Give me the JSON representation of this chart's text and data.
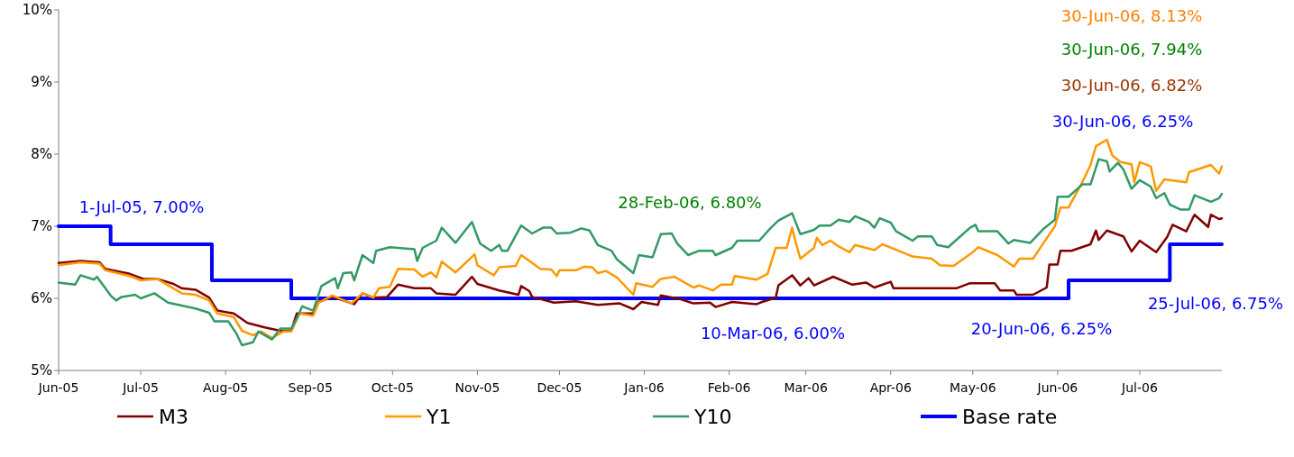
{
  "chart_data": {
    "type": "line",
    "xlim": [
      "2005-06-01",
      "2006-07-31"
    ],
    "ylim": [
      5,
      10
    ],
    "xticks": [
      {
        "value": "2005-06-01",
        "label": "Jun-05"
      },
      {
        "value": "2005-07-01",
        "label": "Jul-05"
      },
      {
        "value": "2005-08-01",
        "label": "Aug-05"
      },
      {
        "value": "2005-09-01",
        "label": "Sep-05"
      },
      {
        "value": "2005-10-01",
        "label": "Oct-05"
      },
      {
        "value": "2005-11-01",
        "label": "Nov-05"
      },
      {
        "value": "2005-12-01",
        "label": "Dec-05"
      },
      {
        "value": "2006-01-01",
        "label": "Jan-06"
      },
      {
        "value": "2006-02-01",
        "label": "Feb-06"
      },
      {
        "value": "2006-03-01",
        "label": "Mar-06"
      },
      {
        "value": "2006-04-01",
        "label": "Apr-06"
      },
      {
        "value": "2006-05-01",
        "label": "May-06"
      },
      {
        "value": "2006-06-01",
        "label": "Jun-06"
      },
      {
        "value": "2006-07-01",
        "label": "Jul-06"
      }
    ],
    "yticks": [
      {
        "value": 5,
        "label": "5%"
      },
      {
        "value": 6,
        "label": "6%"
      },
      {
        "value": 7,
        "label": "7%"
      },
      {
        "value": 8,
        "label": "8%"
      },
      {
        "value": 9,
        "label": "9%"
      },
      {
        "value": 10,
        "label": "10%"
      }
    ],
    "grid": false,
    "legend": "bottom",
    "line_style": "solid",
    "series": [
      {
        "name": "M3",
        "color": "#800000",
        "x": [
          "2005-06-01",
          "2005-06-09",
          "2005-06-16",
          "2005-06-18",
          "2005-06-27",
          "2005-07-02",
          "2005-07-07",
          "2005-07-13",
          "2005-07-16",
          "2005-07-21",
          "2005-07-26",
          "2005-07-29",
          "2005-08-04",
          "2005-08-09",
          "2005-08-15",
          "2005-08-21",
          "2005-08-25",
          "2005-08-27",
          "2005-09-02",
          "2005-09-04",
          "2005-09-09",
          "2005-09-17",
          "2005-09-20",
          "2005-09-24",
          "2005-09-29",
          "2005-10-03",
          "2005-10-09",
          "2005-10-15",
          "2005-10-17",
          "2005-10-24",
          "2005-10-30",
          "2005-11-01",
          "2005-11-09",
          "2005-11-16",
          "2005-11-17",
          "2005-11-20",
          "2005-11-21",
          "2005-11-29",
          "2005-12-07",
          "2005-12-15",
          "2005-12-23",
          "2005-12-28",
          "2005-12-31",
          "2006-01-06",
          "2006-01-07",
          "2006-01-14",
          "2006-01-19",
          "2006-01-25",
          "2006-01-27",
          "2006-02-02",
          "2006-02-11",
          "2006-02-13",
          "2006-02-18",
          "2006-02-19",
          "2006-02-24",
          "2006-02-27",
          "2006-03-02",
          "2006-03-04",
          "2006-03-11",
          "2006-03-18",
          "2006-03-23",
          "2006-03-26",
          "2006-04-01",
          "2006-04-02",
          "2006-04-25",
          "2006-04-30",
          "2006-05-09",
          "2006-05-11",
          "2006-05-16",
          "2006-05-17",
          "2006-05-23",
          "2006-05-28",
          "2006-05-29",
          "2006-06-01",
          "2006-06-02",
          "2006-06-06",
          "2006-06-13",
          "2006-06-15",
          "2006-06-16",
          "2006-06-19",
          "2006-06-25",
          "2006-06-28",
          "2006-07-01",
          "2006-07-07",
          "2006-07-11",
          "2006-07-13",
          "2006-07-18",
          "2006-07-21",
          "2006-07-26",
          "2006-07-27",
          "2006-07-30",
          "2006-07-31"
        ],
        "values": [
          6.49,
          6.52,
          6.5,
          6.41,
          6.34,
          6.27,
          6.27,
          6.2,
          6.14,
          6.12,
          6.01,
          5.83,
          5.79,
          5.66,
          5.6,
          5.55,
          5.55,
          5.79,
          5.79,
          5.95,
          6.02,
          5.92,
          6.07,
          6.01,
          6.02,
          6.19,
          6.14,
          6.14,
          6.07,
          6.05,
          6.3,
          6.2,
          6.11,
          6.05,
          6.17,
          6.1,
          6.02,
          5.94,
          5.96,
          5.91,
          5.93,
          5.85,
          5.95,
          5.91,
          6.04,
          5.99,
          5.93,
          5.94,
          5.88,
          5.95,
          5.92,
          5.95,
          6.01,
          6.18,
          6.32,
          6.18,
          6.28,
          6.18,
          6.3,
          6.19,
          6.22,
          6.15,
          6.23,
          6.14,
          6.14,
          6.21,
          6.21,
          6.11,
          6.11,
          6.05,
          6.05,
          6.15,
          6.47,
          6.47,
          6.66,
          6.66,
          6.75,
          6.94,
          6.81,
          6.94,
          6.86,
          6.65,
          6.8,
          6.64,
          6.85,
          7.02,
          6.93,
          7.16,
          6.99,
          7.16,
          7.1,
          7.11
        ]
      },
      {
        "name": "Y1",
        "color": "#ff9900",
        "x": [
          "2005-06-01",
          "2005-06-09",
          "2005-06-16",
          "2005-06-18",
          "2005-06-27",
          "2005-07-01",
          "2005-07-07",
          "2005-07-16",
          "2005-07-21",
          "2005-07-26",
          "2005-07-29",
          "2005-08-04",
          "2005-08-07",
          "2005-08-11",
          "2005-08-14",
          "2005-08-18",
          "2005-08-22",
          "2005-08-25",
          "2005-08-28",
          "2005-09-02",
          "2005-09-04",
          "2005-09-09",
          "2005-09-16",
          "2005-09-20",
          "2005-09-24",
          "2005-09-26",
          "2005-09-30",
          "2005-10-03",
          "2005-10-09",
          "2005-10-12",
          "2005-10-15",
          "2005-10-17",
          "2005-10-19",
          "2005-10-24",
          "2005-10-31",
          "2005-11-01",
          "2005-11-07",
          "2005-11-09",
          "2005-11-15",
          "2005-11-17",
          "2005-11-24",
          "2005-11-28",
          "2005-11-30",
          "2005-12-01",
          "2005-12-07",
          "2005-12-10",
          "2005-12-13",
          "2005-12-15",
          "2005-12-18",
          "2005-12-22",
          "2005-12-28",
          "2005-12-29",
          "2006-01-04",
          "2006-01-07",
          "2006-01-12",
          "2006-01-19",
          "2006-01-21",
          "2006-01-26",
          "2006-01-29",
          "2006-02-02",
          "2006-02-03",
          "2006-02-11",
          "2006-02-15",
          "2006-02-18",
          "2006-02-22",
          "2006-02-24",
          "2006-02-25",
          "2006-02-27",
          "2006-03-04",
          "2006-03-05",
          "2006-03-07",
          "2006-03-10",
          "2006-03-13",
          "2006-03-17",
          "2006-03-19",
          "2006-03-23",
          "2006-03-26",
          "2006-03-29",
          "2006-04-02",
          "2006-04-09",
          "2006-04-16",
          "2006-04-19",
          "2006-04-24",
          "2006-05-01",
          "2006-05-03",
          "2006-05-10",
          "2006-05-16",
          "2006-05-18",
          "2006-05-23",
          "2006-05-26",
          "2006-05-31",
          "2006-06-02",
          "2006-06-05",
          "2006-06-10",
          "2006-06-13",
          "2006-06-15",
          "2006-06-19",
          "2006-06-21",
          "2006-06-24",
          "2006-06-28",
          "2006-06-29",
          "2006-07-01",
          "2006-07-05",
          "2006-07-07",
          "2006-07-10",
          "2006-07-18",
          "2006-07-19",
          "2006-07-27",
          "2006-07-30",
          "2006-07-31"
        ],
        "values": [
          6.46,
          6.5,
          6.48,
          6.39,
          6.31,
          6.25,
          6.27,
          6.07,
          6.05,
          5.97,
          5.79,
          5.74,
          5.55,
          5.49,
          5.54,
          5.45,
          5.54,
          5.54,
          5.79,
          5.76,
          5.94,
          6.04,
          5.93,
          6.07,
          6.01,
          6.14,
          6.16,
          6.41,
          6.4,
          6.3,
          6.36,
          6.29,
          6.51,
          6.36,
          6.61,
          6.46,
          6.32,
          6.43,
          6.45,
          6.6,
          6.41,
          6.4,
          6.31,
          6.39,
          6.39,
          6.44,
          6.43,
          6.35,
          6.38,
          6.29,
          6.05,
          6.21,
          6.16,
          6.27,
          6.3,
          6.15,
          6.18,
          6.11,
          6.19,
          6.19,
          6.31,
          6.26,
          6.34,
          6.7,
          6.7,
          6.98,
          6.82,
          6.55,
          6.7,
          6.84,
          6.74,
          6.8,
          6.72,
          6.64,
          6.74,
          6.7,
          6.67,
          6.75,
          6.69,
          6.58,
          6.55,
          6.46,
          6.45,
          6.64,
          6.71,
          6.6,
          6.44,
          6.55,
          6.55,
          6.72,
          7.0,
          7.26,
          7.26,
          7.61,
          7.85,
          8.11,
          8.2,
          7.98,
          7.89,
          7.86,
          7.61,
          7.89,
          7.83,
          7.49,
          7.65,
          7.61,
          7.75,
          7.85,
          7.73,
          7.83
        ]
      },
      {
        "name": "Y10",
        "color": "#339966",
        "x": [
          "2005-06-01",
          "2005-06-07",
          "2005-06-09",
          "2005-06-14",
          "2005-06-15",
          "2005-06-20",
          "2005-06-22",
          "2005-06-24",
          "2005-06-29",
          "2005-07-01",
          "2005-07-06",
          "2005-07-11",
          "2005-07-21",
          "2005-07-26",
          "2005-07-28",
          "2005-08-02",
          "2005-08-05",
          "2005-08-07",
          "2005-08-11",
          "2005-08-13",
          "2005-08-18",
          "2005-08-21",
          "2005-08-25",
          "2005-08-27",
          "2005-08-29",
          "2005-09-02",
          "2005-09-05",
          "2005-09-10",
          "2005-09-11",
          "2005-09-13",
          "2005-09-16",
          "2005-09-17",
          "2005-09-20",
          "2005-09-24",
          "2005-09-25",
          "2005-09-30",
          "2005-10-09",
          "2005-10-10",
          "2005-10-12",
          "2005-10-17",
          "2005-10-19",
          "2005-10-24",
          "2005-10-30",
          "2005-11-02",
          "2005-11-06",
          "2005-11-09",
          "2005-11-10",
          "2005-11-12",
          "2005-11-17",
          "2005-11-21",
          "2005-11-25",
          "2005-11-28",
          "2005-11-30",
          "2005-12-05",
          "2005-12-09",
          "2005-12-12",
          "2005-12-15",
          "2005-12-20",
          "2005-12-22",
          "2005-12-28",
          "2005-12-30",
          "2006-01-04",
          "2006-01-07",
          "2006-01-11",
          "2006-01-13",
          "2006-01-17",
          "2006-01-21",
          "2006-01-26",
          "2006-01-27",
          "2006-02-02",
          "2006-02-04",
          "2006-02-12",
          "2006-02-16",
          "2006-02-19",
          "2006-02-24",
          "2006-02-27",
          "2006-03-04",
          "2006-03-06",
          "2006-03-10",
          "2006-03-13",
          "2006-03-17",
          "2006-03-19",
          "2006-03-24",
          "2006-03-26",
          "2006-03-28",
          "2006-04-01",
          "2006-04-03",
          "2006-04-09",
          "2006-04-11",
          "2006-04-16",
          "2006-04-18",
          "2006-04-22",
          "2006-04-30",
          "2006-05-02",
          "2006-05-03",
          "2006-05-10",
          "2006-05-14",
          "2006-05-16",
          "2006-05-22",
          "2006-05-27",
          "2006-05-31",
          "2006-06-01",
          "2006-06-05",
          "2006-06-10",
          "2006-06-13",
          "2006-06-16",
          "2006-06-19",
          "2006-06-20",
          "2006-06-23",
          "2006-06-25",
          "2006-06-28",
          "2006-07-01",
          "2006-07-05",
          "2006-07-07",
          "2006-07-10",
          "2006-07-12",
          "2006-07-16",
          "2006-07-19",
          "2006-07-21",
          "2006-07-27",
          "2006-07-30",
          "2006-07-31"
        ],
        "values": [
          6.22,
          6.19,
          6.32,
          6.26,
          6.3,
          6.04,
          5.97,
          6.02,
          6.05,
          6.0,
          6.07,
          5.94,
          5.86,
          5.8,
          5.68,
          5.68,
          5.51,
          5.35,
          5.39,
          5.54,
          5.43,
          5.58,
          5.58,
          5.72,
          5.89,
          5.83,
          6.17,
          6.28,
          6.14,
          6.35,
          6.36,
          6.25,
          6.6,
          6.49,
          6.66,
          6.71,
          6.68,
          6.52,
          6.7,
          6.8,
          6.98,
          6.77,
          7.06,
          6.76,
          6.66,
          6.74,
          6.66,
          6.66,
          7.01,
          6.9,
          6.98,
          6.98,
          6.9,
          6.91,
          6.97,
          6.94,
          6.74,
          6.66,
          6.54,
          6.35,
          6.6,
          6.57,
          6.89,
          6.9,
          6.76,
          6.6,
          6.66,
          6.66,
          6.6,
          6.7,
          6.8,
          6.8,
          6.97,
          7.08,
          7.18,
          6.89,
          6.95,
          7.01,
          7.01,
          7.09,
          7.06,
          7.14,
          7.06,
          6.98,
          7.11,
          7.05,
          6.93,
          6.8,
          6.86,
          6.86,
          6.74,
          6.71,
          6.98,
          7.02,
          6.93,
          6.93,
          6.76,
          6.81,
          6.77,
          6.97,
          7.09,
          7.41,
          7.41,
          7.58,
          7.58,
          7.93,
          7.9,
          7.76,
          7.88,
          7.79,
          7.52,
          7.64,
          7.55,
          7.39,
          7.46,
          7.3,
          7.23,
          7.23,
          7.43,
          7.34,
          7.39,
          7.45
        ]
      },
      {
        "name": "Base rate",
        "type": "step",
        "color": "#0000ff",
        "x": [
          "2005-06-01",
          "2005-06-20",
          "2005-07-27",
          "2005-08-25",
          "2006-06-05",
          "2006-07-12",
          "2006-07-31"
        ],
        "values": [
          7.0,
          6.75,
          6.25,
          6.0,
          6.25,
          6.75,
          6.75
        ]
      }
    ],
    "annotations": [
      "1-Jul-05, 7.00%",
      "28-Feb-06, 6.80%",
      "10-Mar-06, 6.00%",
      "20-Jun-06, 6.25%",
      "25-Jul-06, 6.75%",
      "30-Jun-06, 8.13%",
      "30-Jun-06, 7.94%",
      "30-Jun-06, 6.82%",
      "30-Jun-06, 6.25%"
    ]
  }
}
